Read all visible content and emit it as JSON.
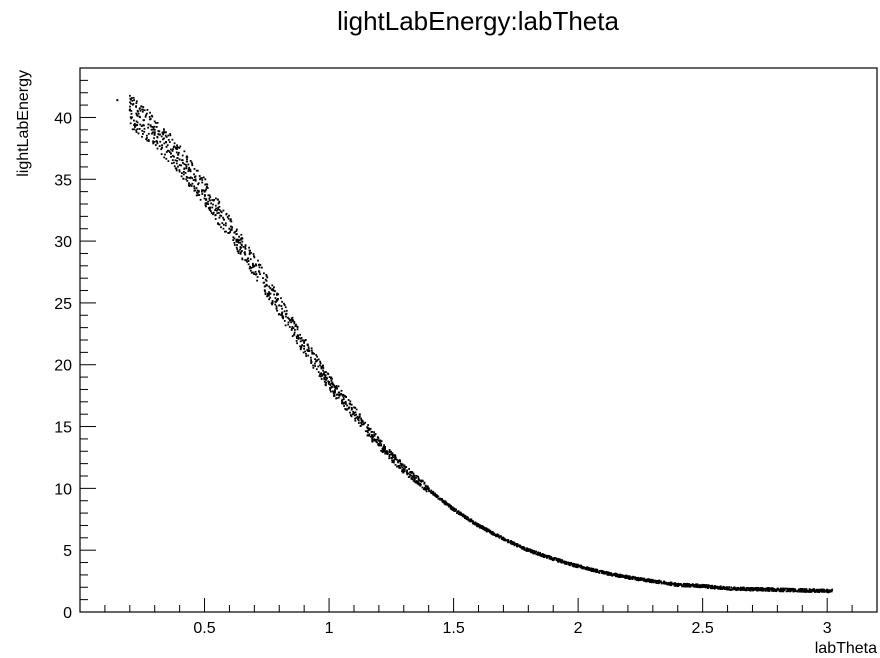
{
  "chart_data": {
    "type": "scatter",
    "title": "lightLabEnergy:labTheta",
    "xlabel": "labTheta",
    "ylabel": "lightLabEnergy",
    "xlim": [
      0.0,
      3.2
    ],
    "ylim": [
      0,
      44
    ],
    "x_ticks": [
      "0.5",
      "1",
      "1.5",
      "2",
      "2.5",
      "3"
    ],
    "y_ticks": [
      "0",
      "5",
      "10",
      "15",
      "20",
      "25",
      "30",
      "35",
      "40"
    ],
    "grid": false,
    "legend": "none",
    "marker_color": "#000000",
    "series": [
      {
        "x": [
          0.15,
          0.2,
          0.3,
          0.4,
          0.5,
          0.6,
          0.7,
          0.8,
          0.9,
          1.0,
          1.1,
          1.2,
          1.3,
          1.4,
          1.5,
          1.6,
          1.7,
          1.8,
          1.9,
          2.0,
          2.1,
          2.2,
          2.3,
          2.4,
          2.5,
          2.6,
          2.7,
          2.8,
          2.9,
          3.0
        ],
        "y": [
          41.4,
          40.6,
          38.8,
          36.6,
          34.0,
          31.0,
          28.0,
          24.8,
          21.5,
          18.6,
          16.1,
          13.6,
          11.6,
          9.9,
          8.3,
          7.0,
          5.9,
          5.0,
          4.3,
          3.7,
          3.2,
          2.8,
          2.5,
          2.2,
          2.1,
          1.9,
          1.85,
          1.8,
          1.75,
          1.7
        ]
      }
    ]
  }
}
